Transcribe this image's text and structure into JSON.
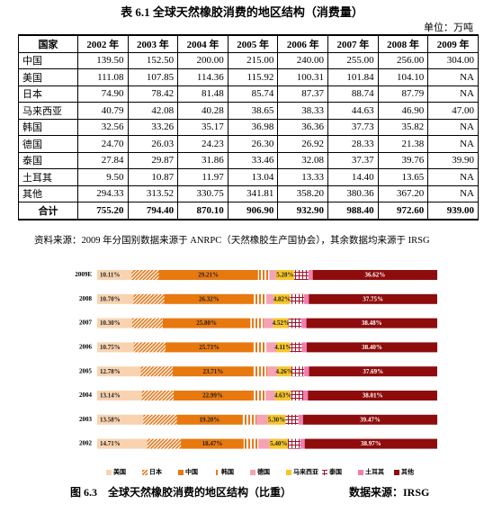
{
  "document": {
    "title": "表 6.1 全球天然橡胶消费的地区结构（消费量）",
    "unit": "单位：万吨",
    "source_note": "资料来源：2009 年分国别数据来源于 ANRPC（天然橡胶生产国协会），其余数据均来源于 IRSG"
  },
  "table": {
    "header": [
      "国家",
      "2002 年",
      "2003 年",
      "2004 年",
      "2005 年",
      "2006 年",
      "2007 年",
      "2008 年",
      "2009 年"
    ],
    "rows": [
      [
        "中国",
        "139.50",
        "152.50",
        "200.00",
        "215.00",
        "240.00",
        "255.00",
        "256.00",
        "304.00"
      ],
      [
        "美国",
        "111.08",
        "107.85",
        "114.36",
        "115.92",
        "100.31",
        "101.84",
        "104.10",
        "NA"
      ],
      [
        "日本",
        "74.90",
        "78.42",
        "81.48",
        "85.74",
        "87.37",
        "88.74",
        "87.79",
        "NA"
      ],
      [
        "马来西亚",
        "40.79",
        "42.08",
        "40.28",
        "38.65",
        "38.33",
        "44.63",
        "46.90",
        "47.00"
      ],
      [
        "韩国",
        "32.56",
        "33.26",
        "35.17",
        "36.98",
        "36.36",
        "37.73",
        "35.82",
        "NA"
      ],
      [
        "德国",
        "24.70",
        "26.03",
        "24.23",
        "26.30",
        "26.92",
        "28.33",
        "21.38",
        "NA"
      ],
      [
        "泰国",
        "27.84",
        "29.87",
        "31.86",
        "33.46",
        "32.08",
        "37.37",
        "39.76",
        "39.90"
      ],
      [
        "土耳其",
        "9.50",
        "10.87",
        "11.97",
        "13.04",
        "13.33",
        "14.40",
        "13.65",
        "NA"
      ],
      [
        "其他",
        "294.33",
        "313.52",
        "330.75",
        "341.81",
        "358.20",
        "380.36",
        "367.20",
        "NA"
      ],
      [
        "合计",
        "755.20",
        "794.40",
        "870.10",
        "906.90",
        "932.90",
        "988.40",
        "972.60",
        "939.00"
      ]
    ]
  },
  "chart_data": {
    "type": "bar",
    "orientation": "horizontal",
    "stacked": true,
    "xlim": [
      0,
      100
    ],
    "categories": [
      "2009E",
      "2008",
      "2007",
      "2006",
      "2005",
      "2004",
      "2003",
      "2002"
    ],
    "series": [
      {
        "name": "美国",
        "color": "#f9d3b0",
        "values": [
          10.11,
          10.7,
          10.3,
          10.75,
          12.78,
          13.14,
          13.58,
          14.71
        ],
        "value_labels": [
          "10.11%",
          "10.70%",
          "10.30%",
          "10.75%",
          "12.78%",
          "13.14%",
          "13.58%",
          "14.71%"
        ]
      },
      {
        "name": "日本",
        "color": "#e9781b",
        "pattern": "diagonal",
        "values": [
          8.0,
          9.03,
          8.98,
          9.37,
          9.45,
          9.36,
          9.87,
          9.92
        ]
      },
      {
        "name": "中国",
        "color": "#e8790f",
        "values": [
          29.21,
          26.32,
          25.8,
          25.73,
          23.71,
          22.99,
          19.2,
          18.47
        ],
        "value_labels": [
          "29.21%",
          "26.32%",
          "25.80%",
          "25.73%",
          "23.71%",
          "22.99%",
          "19.20%",
          "18.47%"
        ]
      },
      {
        "name": "韩国",
        "color": "#e9781b",
        "pattern": "vertical",
        "values": [
          3.3,
          3.68,
          3.82,
          3.9,
          4.08,
          4.04,
          4.19,
          4.31
        ]
      },
      {
        "name": "德国",
        "color": "#f5a3b4",
        "values": [
          2.0,
          2.2,
          2.87,
          2.89,
          2.9,
          2.78,
          3.28,
          3.27
        ]
      },
      {
        "name": "马来西亚",
        "color": "#f6c52a",
        "values": [
          5.28,
          4.82,
          4.52,
          4.11,
          4.26,
          4.63,
          5.3,
          5.4
        ],
        "value_labels": [
          "5.28%",
          "4.82%",
          "4.52%",
          "4.11%",
          "4.26%",
          "4.63%",
          "5.30%",
          "5.40%"
        ]
      },
      {
        "name": "泰国",
        "color": "#a0102a",
        "pattern": "grid",
        "values": [
          4.2,
          4.09,
          3.78,
          3.44,
          3.69,
          3.66,
          3.76,
          3.69
        ]
      },
      {
        "name": "土耳其",
        "color": "#ef7fae",
        "values": [
          1.3,
          1.4,
          1.46,
          1.43,
          1.44,
          1.38,
          1.37,
          1.26
        ]
      },
      {
        "name": "其他",
        "color": "#8e0c0c",
        "values": [
          36.62,
          37.75,
          38.48,
          38.4,
          37.69,
          38.01,
          39.47,
          38.97
        ],
        "value_labels": [
          "36.62%",
          "37.75%",
          "38.48%",
          "38.40%",
          "37.69%",
          "38.01%",
          "39.47%",
          "38.97%"
        ]
      }
    ]
  },
  "figure": {
    "caption": "图 6.3　全球天然橡胶消费的地区结构（比重）",
    "source": "数据来源：IRSG"
  }
}
